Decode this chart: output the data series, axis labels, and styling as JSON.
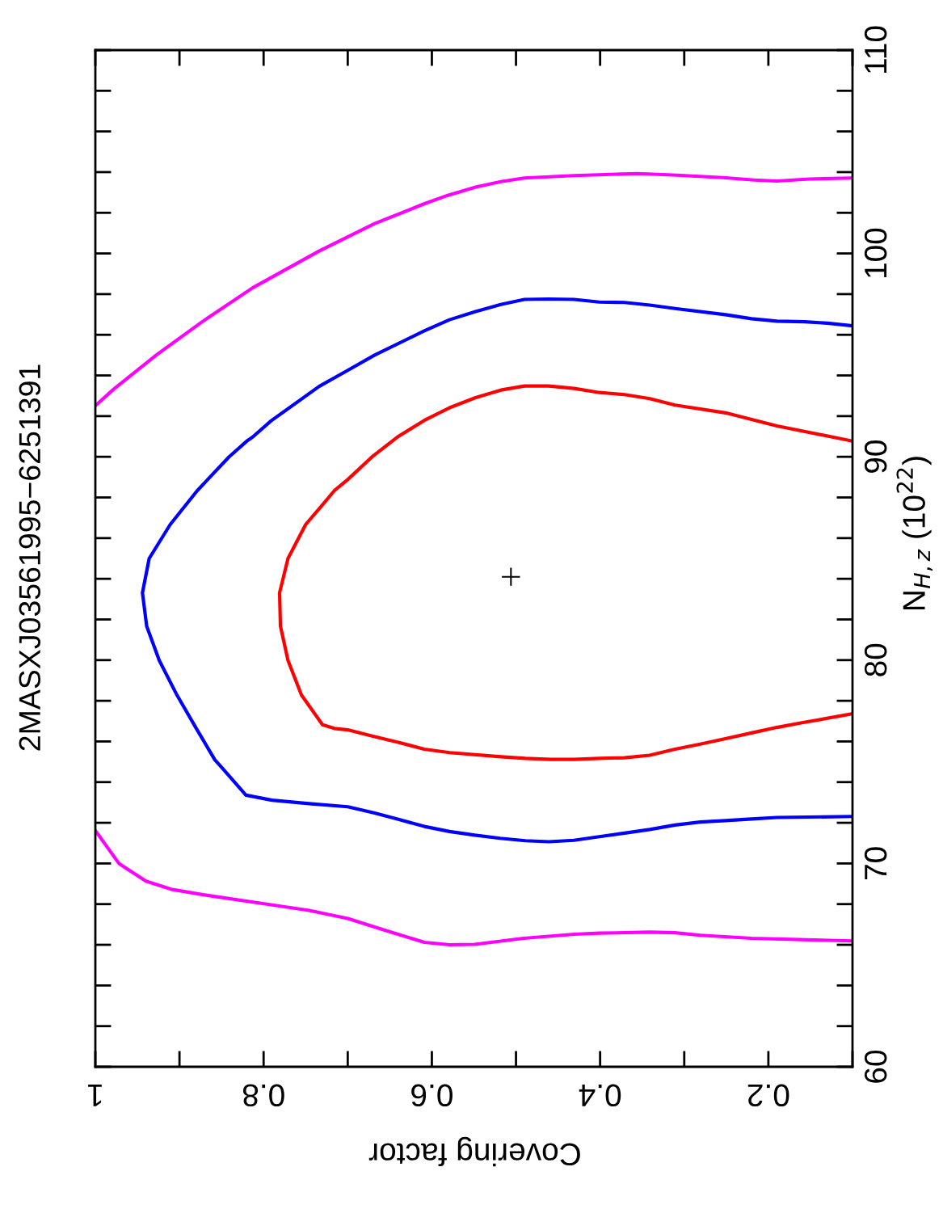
{
  "chart_data": {
    "type": "line",
    "title": "2MASXJ03561995−6251391",
    "ylabel": "N$_{H,z}$ (10$^{22}$)",
    "xlabel": "Covering factor",
    "ylim": [
      60,
      110
    ],
    "xlim": [
      1,
      0.1
    ],
    "yticks": [
      60,
      70,
      80,
      90,
      100,
      110
    ],
    "xticks": [
      1,
      0.8,
      0.6,
      0.4,
      0.2
    ],
    "grid": false,
    "line_style": "solid",
    "series": [
      {
        "color": "#ff00ff",
        "values": [
          92.51,
          93.33,
          95.02,
          96.64,
          98.31,
          100.12,
          101.47,
          102.46,
          102.86,
          103.26,
          103.53,
          103.71,
          103.83,
          103.93,
          103.86,
          103.73,
          103.61,
          103.56,
          103.66,
          103.71
        ],
        "x": [
          1.0,
          0.978,
          0.927,
          0.873,
          0.813,
          0.734,
          0.668,
          0.608,
          0.581,
          0.548,
          0.518,
          0.49,
          0.431,
          0.356,
          0.314,
          0.254,
          0.217,
          0.19,
          0.151,
          0.1
        ]
      },
      {
        "color": "#ff00ff",
        "values": [
          71.62,
          70.0,
          69.13,
          68.73,
          68.43,
          68.06,
          67.69,
          67.29,
          66.72,
          66.12,
          66.0,
          66.02,
          66.32,
          66.52,
          66.57,
          66.62,
          66.59,
          66.47,
          66.32,
          66.19
        ],
        "x": [
          1.0,
          0.972,
          0.94,
          0.91,
          0.867,
          0.806,
          0.746,
          0.7,
          0.656,
          0.609,
          0.579,
          0.549,
          0.491,
          0.431,
          0.401,
          0.341,
          0.311,
          0.281,
          0.22,
          0.1
        ]
      },
      {
        "color": "#0000ff",
        "values": [
          96.44,
          96.57,
          96.64,
          96.67,
          96.79,
          96.99,
          97.29,
          97.46,
          97.59,
          97.61,
          97.74,
          97.76,
          97.74,
          97.49,
          97.14,
          96.74,
          96.19,
          95.0,
          94.25,
          93.46,
          91.77,
          90.97,
          90.77,
          90.0,
          88.33,
          86.67,
          85.0,
          83.31,
          81.67,
          79.98,
          78.28,
          76.64,
          75.1,
          74.73,
          73.36,
          73.11,
          72.94,
          72.79,
          72.49,
          72.16,
          71.82,
          71.57,
          71.39,
          71.24,
          71.12,
          71.07,
          71.14,
          71.32,
          71.49,
          71.67,
          71.89,
          72.04,
          72.11,
          72.19,
          72.26,
          72.31
        ],
        "x": [
          0.1,
          0.13,
          0.157,
          0.19,
          0.22,
          0.251,
          0.311,
          0.341,
          0.371,
          0.401,
          0.431,
          0.461,
          0.49,
          0.518,
          0.548,
          0.579,
          0.609,
          0.668,
          0.7,
          0.734,
          0.791,
          0.813,
          0.82,
          0.841,
          0.879,
          0.911,
          0.936,
          0.944,
          0.939,
          0.924,
          0.903,
          0.88,
          0.858,
          0.85,
          0.821,
          0.79,
          0.746,
          0.7,
          0.669,
          0.639,
          0.609,
          0.579,
          0.549,
          0.519,
          0.489,
          0.461,
          0.431,
          0.401,
          0.371,
          0.341,
          0.311,
          0.281,
          0.251,
          0.22,
          0.19,
          0.1
        ]
      },
      {
        "color": "#ff0000",
        "values": [
          90.77,
          91.52,
          92.16,
          92.54,
          92.86,
          93.06,
          93.16,
          93.36,
          93.48,
          93.48,
          93.28,
          92.91,
          92.41,
          91.79,
          90.97,
          90.0,
          88.88,
          88.33,
          87.59,
          86.67,
          85.0,
          83.31,
          81.67,
          79.98,
          78.28,
          76.82,
          76.64,
          76.57,
          76.27,
          75.97,
          75.62,
          75.45,
          75.25,
          75.17,
          75.12,
          75.12,
          75.17,
          75.2,
          75.32,
          75.62,
          75.87,
          76.14,
          76.42,
          76.69,
          76.92,
          77.36
        ],
        "x": [
          0.1,
          0.19,
          0.251,
          0.311,
          0.341,
          0.371,
          0.401,
          0.431,
          0.461,
          0.49,
          0.518,
          0.548,
          0.579,
          0.609,
          0.641,
          0.671,
          0.7,
          0.716,
          0.731,
          0.75,
          0.771,
          0.781,
          0.78,
          0.771,
          0.755,
          0.73,
          0.716,
          0.7,
          0.671,
          0.641,
          0.609,
          0.579,
          0.518,
          0.489,
          0.459,
          0.431,
          0.401,
          0.371,
          0.341,
          0.311,
          0.281,
          0.251,
          0.22,
          0.19,
          0.16,
          0.1
        ]
      },
      {
        "type": "scatter",
        "marker": "cross",
        "color": "#000000",
        "values": [
          84.1
        ],
        "x": [
          0.506
        ]
      }
    ]
  }
}
